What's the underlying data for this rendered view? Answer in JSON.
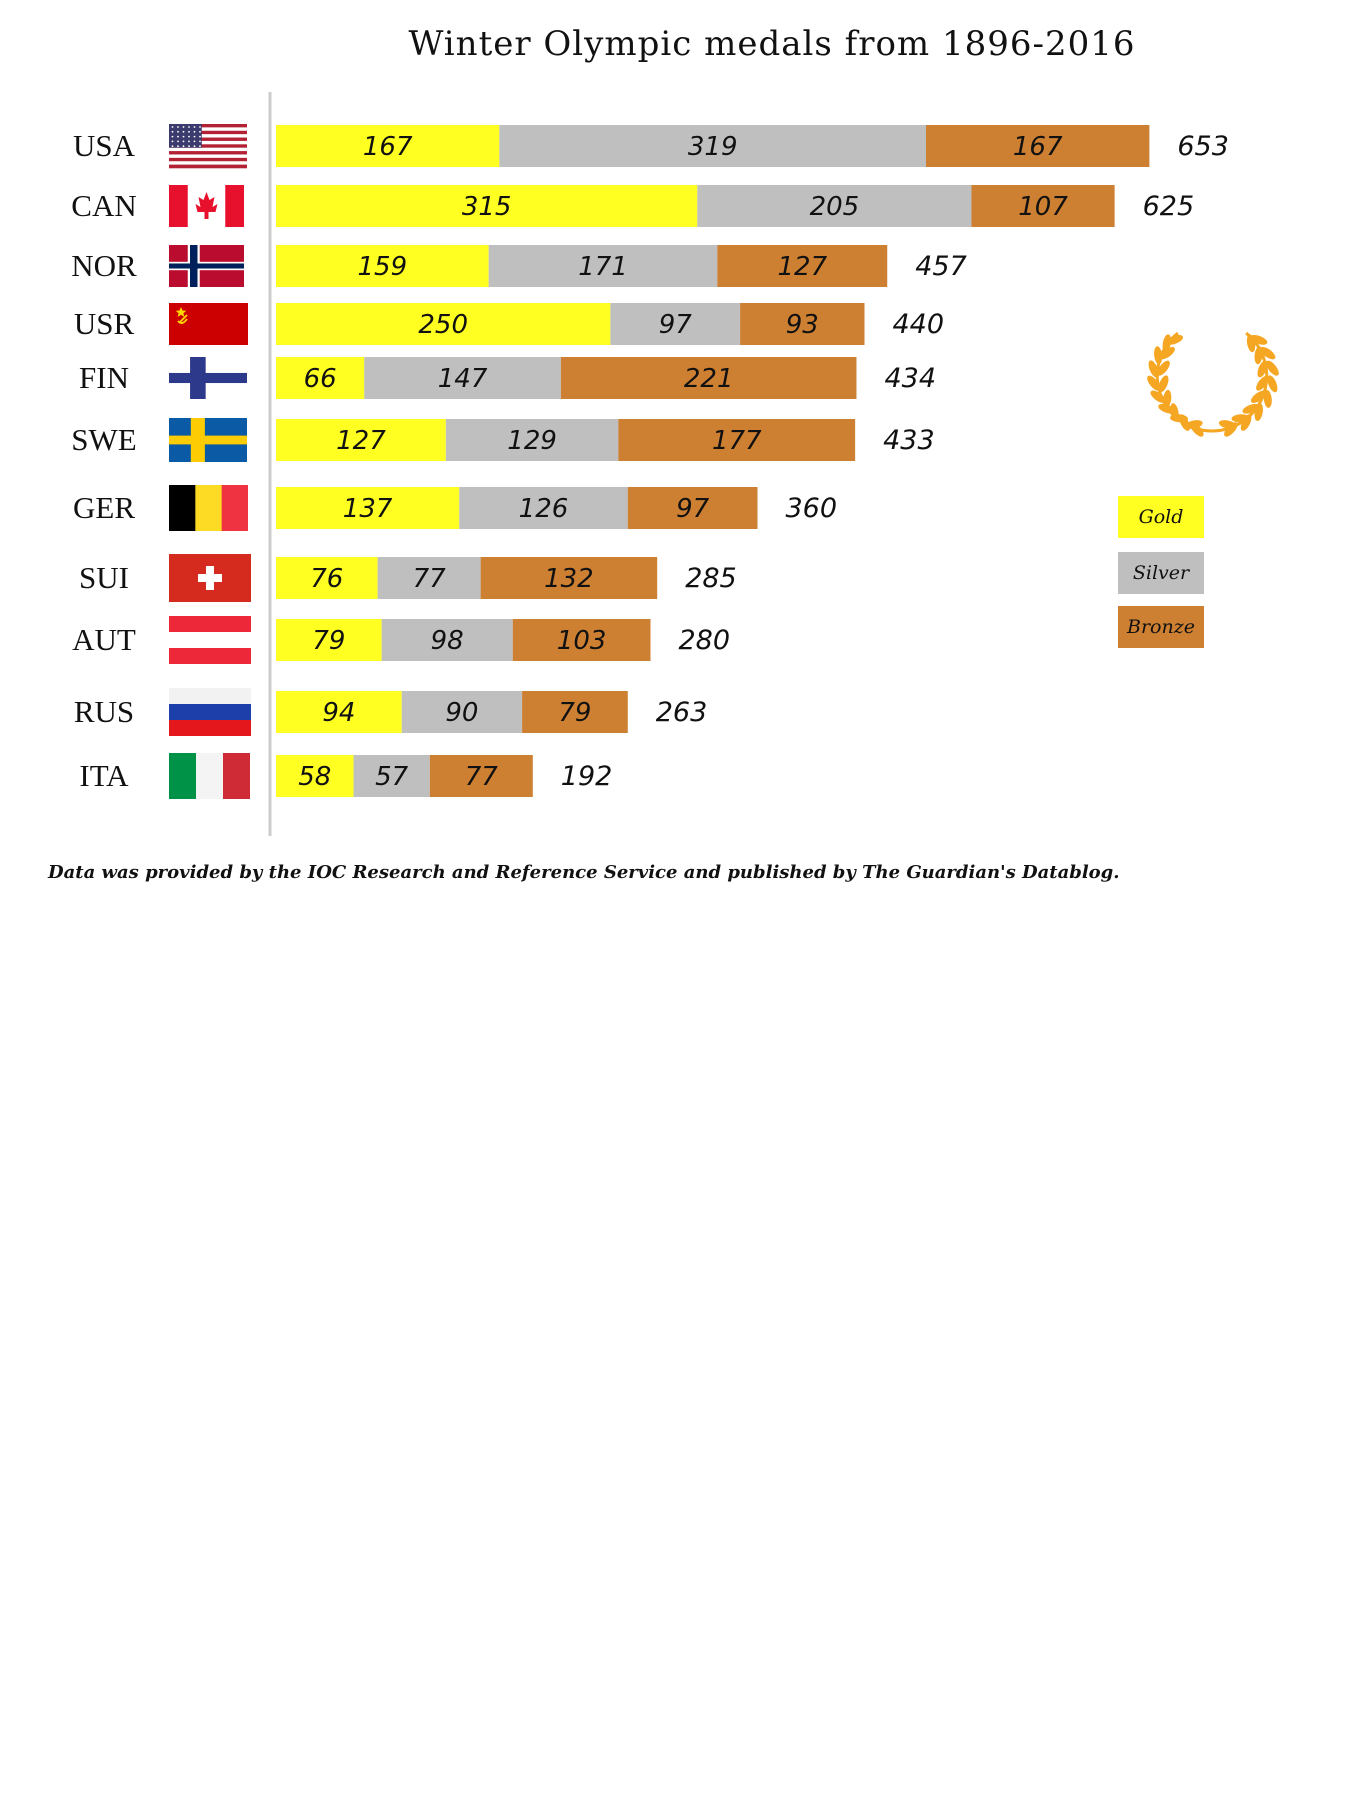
{
  "chart_data": {
    "type": "bar",
    "orientation": "horizontal",
    "stacked": true,
    "title": "Winter Olympic medals from 1896-2016",
    "categories": [
      "USA",
      "CAN",
      "NOR",
      "USR",
      "FIN",
      "SWE",
      "GER",
      "SUI",
      "AUT",
      "RUS",
      "ITA"
    ],
    "series": [
      {
        "name": "Gold",
        "color": "#ffff22",
        "values": [
          167,
          315,
          159,
          250,
          66,
          127,
          137,
          76,
          79,
          94,
          58
        ]
      },
      {
        "name": "Silver",
        "color": "#bfbfbf",
        "values": [
          319,
          205,
          171,
          97,
          147,
          129,
          126,
          77,
          98,
          90,
          57
        ]
      },
      {
        "name": "Bronze",
        "color": "#cd7f32",
        "values": [
          167,
          107,
          127,
          93,
          221,
          177,
          97,
          132,
          103,
          79,
          77
        ]
      }
    ],
    "totals": [
      653,
      625,
      457,
      440,
      434,
      433,
      360,
      285,
      280,
      263,
      192
    ],
    "legend_position": "right",
    "grid": false,
    "xlabel": "",
    "ylabel": ""
  },
  "footnote": "Data was provided by the IOC Research and Reference Service and published by The Guardian's Datablog.",
  "icons": {
    "flags": [
      "usa-flag",
      "canada-flag",
      "norway-flag",
      "ussr-flag",
      "finland-flag",
      "sweden-flag",
      "germany-flag",
      "switzerland-flag",
      "austria-flag",
      "russia-flag",
      "italy-flag"
    ],
    "decoration": "laurel-wreath-icon"
  }
}
